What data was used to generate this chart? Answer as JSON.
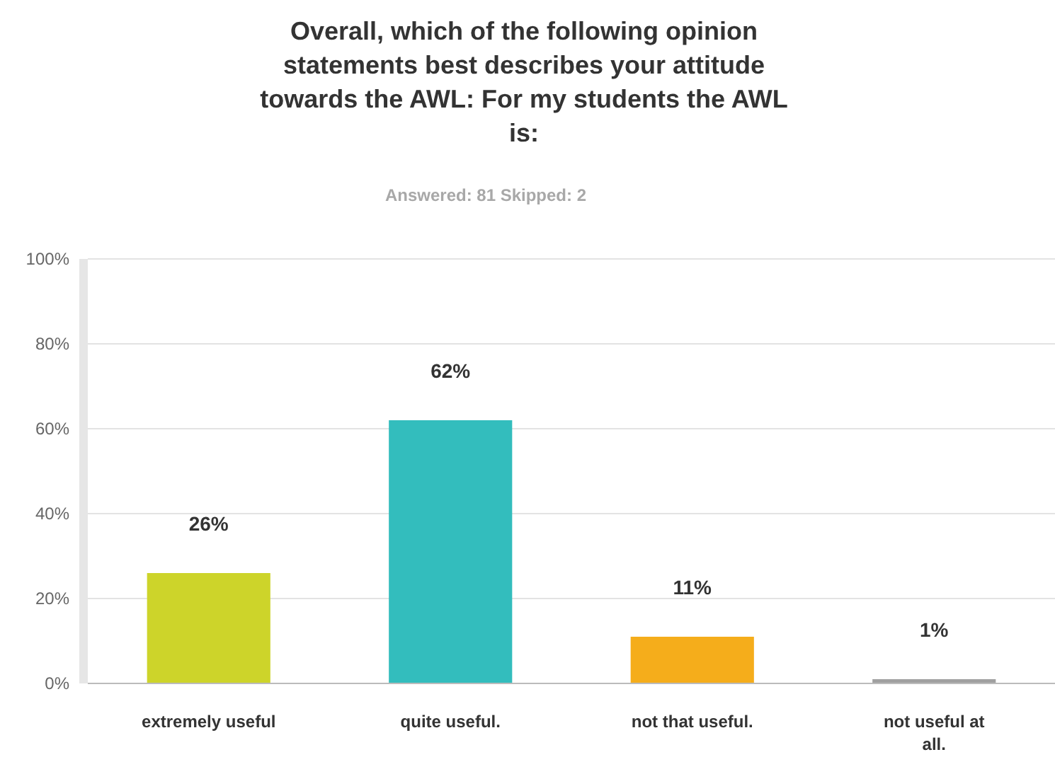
{
  "chart_data": {
    "type": "bar",
    "title": "Overall, which of the following opinion statements best describes your attitude towards the AWL: For my students the AWL is:",
    "subtitle": "Answered: 81   Skipped: 2",
    "categories": [
      "extremely useful",
      "quite useful.",
      "not that useful.",
      "not useful at all."
    ],
    "values": [
      26,
      62,
      11,
      1
    ],
    "colors": [
      "#cdd42a",
      "#33bdbd",
      "#f5ad1b",
      "#a0a0a0"
    ],
    "value_labels": [
      "26%",
      "62%",
      "11%",
      "1%"
    ],
    "ylim": [
      0,
      100
    ],
    "yticks": [
      {
        "value": 0,
        "label": "0%"
      },
      {
        "value": 20,
        "label": "20%"
      },
      {
        "value": 40,
        "label": "40%"
      },
      {
        "value": 60,
        "label": "60%"
      },
      {
        "value": 80,
        "label": "80%"
      },
      {
        "value": 100,
        "label": "100%"
      }
    ],
    "grid": "y"
  }
}
